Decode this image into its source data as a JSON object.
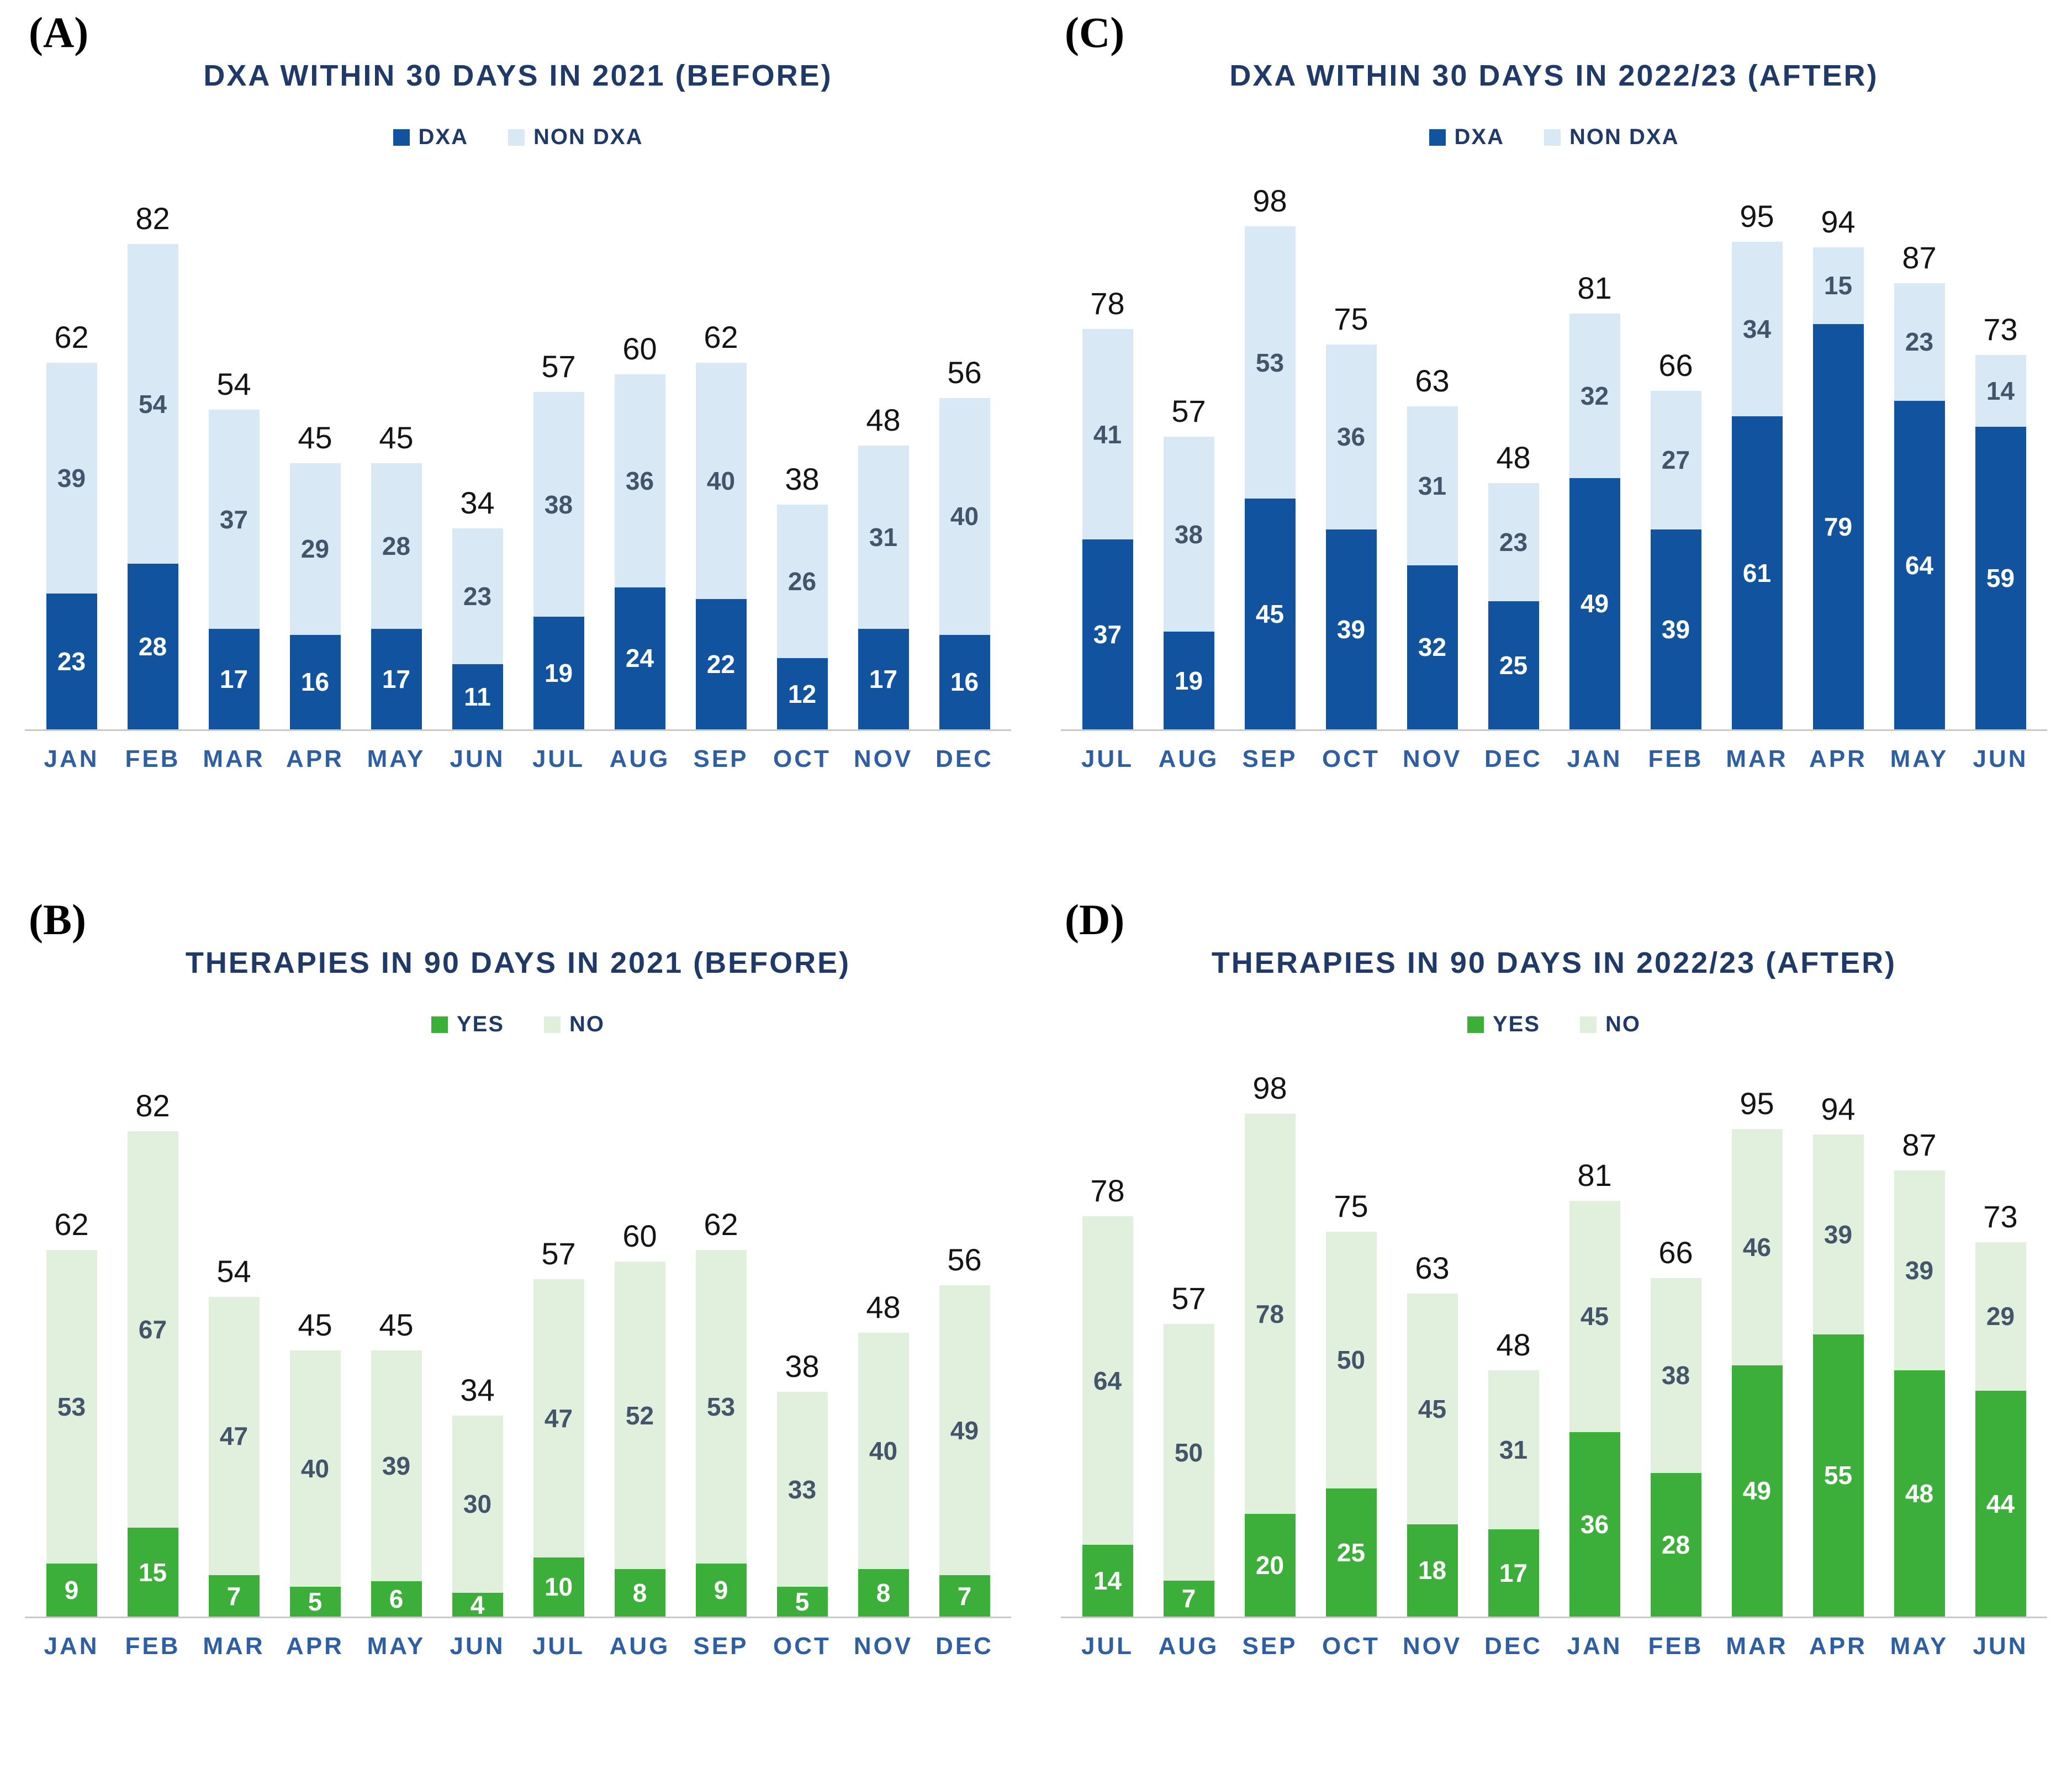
{
  "figure": {
    "description": "Four-panel stacked bar chart figure comparing DXA scans and therapies before and after intervention"
  },
  "chart_data": [
    {
      "type": "bar",
      "stacked": true,
      "panel_label": "(A)",
      "title": "DXA WITHIN 30 DAYS IN 2021 (BEFORE)",
      "legend_position": "top",
      "grid": false,
      "xlabel": "",
      "ylabel": "",
      "ylim": [
        0,
        90
      ],
      "categories": [
        "JAN",
        "FEB",
        "MAR",
        "APR",
        "MAY",
        "JUN",
        "JUL",
        "AUG",
        "SEP",
        "OCT",
        "NOV",
        "DEC"
      ],
      "series": [
        {
          "name": "DXA",
          "color": "#11539E",
          "label_color": "#FFFFFF",
          "values": [
            23,
            28,
            17,
            16,
            17,
            11,
            19,
            24,
            22,
            12,
            17,
            16
          ]
        },
        {
          "name": "NON DXA",
          "color": "#D9E8F5",
          "label_color": "#44546A",
          "values": [
            39,
            54,
            37,
            29,
            28,
            23,
            38,
            36,
            40,
            26,
            31,
            40
          ]
        }
      ],
      "totals": [
        62,
        82,
        54,
        45,
        45,
        34,
        57,
        60,
        62,
        38,
        48,
        56
      ]
    },
    {
      "type": "bar",
      "stacked": true,
      "panel_label": "(B)",
      "title": "THERAPIES IN 90 DAYS IN 2021 (BEFORE)",
      "legend_position": "top",
      "grid": false,
      "xlabel": "",
      "ylabel": "",
      "ylim": [
        0,
        90
      ],
      "categories": [
        "JAN",
        "FEB",
        "MAR",
        "APR",
        "MAY",
        "JUN",
        "JUL",
        "AUG",
        "SEP",
        "OCT",
        "NOV",
        "DEC"
      ],
      "series": [
        {
          "name": "YES",
          "color": "#3CAE3A",
          "label_color": "#FFFFFF",
          "values": [
            9,
            15,
            7,
            5,
            6,
            4,
            10,
            8,
            9,
            5,
            8,
            7
          ]
        },
        {
          "name": "NO",
          "color": "#E1F0DC",
          "label_color": "#44546A",
          "values": [
            53,
            67,
            47,
            40,
            39,
            30,
            47,
            52,
            53,
            33,
            40,
            49
          ]
        }
      ],
      "totals": [
        62,
        82,
        54,
        45,
        45,
        34,
        57,
        60,
        62,
        38,
        48,
        56
      ]
    },
    {
      "type": "bar",
      "stacked": true,
      "panel_label": "(C)",
      "title": "DXA WITHIN 30 DAYS IN 2022/23 (AFTER)",
      "legend_position": "top",
      "grid": false,
      "xlabel": "",
      "ylabel": "",
      "ylim": [
        0,
        105
      ],
      "categories": [
        "JUL",
        "AUG",
        "SEP",
        "OCT",
        "NOV",
        "DEC",
        "JAN",
        "FEB",
        "MAR",
        "APR",
        "MAY",
        "JUN"
      ],
      "series": [
        {
          "name": "DXA",
          "color": "#11539E",
          "label_color": "#FFFFFF",
          "values": [
            37,
            19,
            45,
            39,
            32,
            25,
            49,
            39,
            61,
            79,
            64,
            59
          ]
        },
        {
          "name": "NON DXA",
          "color": "#D9E8F5",
          "label_color": "#44546A",
          "values": [
            41,
            38,
            53,
            36,
            31,
            23,
            32,
            27,
            34,
            15,
            23,
            14
          ]
        }
      ],
      "totals": [
        78,
        57,
        98,
        75,
        63,
        48,
        81,
        66,
        95,
        94,
        87,
        73
      ]
    },
    {
      "type": "bar",
      "stacked": true,
      "panel_label": "(D)",
      "title": "THERAPIES IN 90 DAYS IN 2022/23 (AFTER)",
      "legend_position": "top",
      "grid": false,
      "xlabel": "",
      "ylabel": "",
      "ylim": [
        0,
        105
      ],
      "categories": [
        "JUL",
        "AUG",
        "SEP",
        "OCT",
        "NOV",
        "DEC",
        "JAN",
        "FEB",
        "MAR",
        "APR",
        "MAY",
        "JUN"
      ],
      "series": [
        {
          "name": "YES",
          "color": "#3CAE3A",
          "label_color": "#FFFFFF",
          "values": [
            14,
            7,
            20,
            25,
            18,
            17,
            36,
            28,
            49,
            55,
            48,
            44
          ]
        },
        {
          "name": "NO",
          "color": "#E1F0DC",
          "label_color": "#44546A",
          "values": [
            64,
            50,
            78,
            50,
            45,
            31,
            45,
            38,
            46,
            39,
            39,
            29
          ]
        }
      ],
      "totals": [
        78,
        57,
        98,
        75,
        63,
        48,
        81,
        66,
        95,
        94,
        87,
        73
      ]
    }
  ],
  "colors": {
    "dxa": "#11539E",
    "non_dxa": "#D9E8F5",
    "yes": "#3CAE3A",
    "no": "#E1F0DC",
    "title_text": "#1F3A68",
    "month_text": "#2E5FA3",
    "segment_text_light": "#44546A",
    "total_text": "#141414",
    "axis_line": "#C9C9C9"
  }
}
